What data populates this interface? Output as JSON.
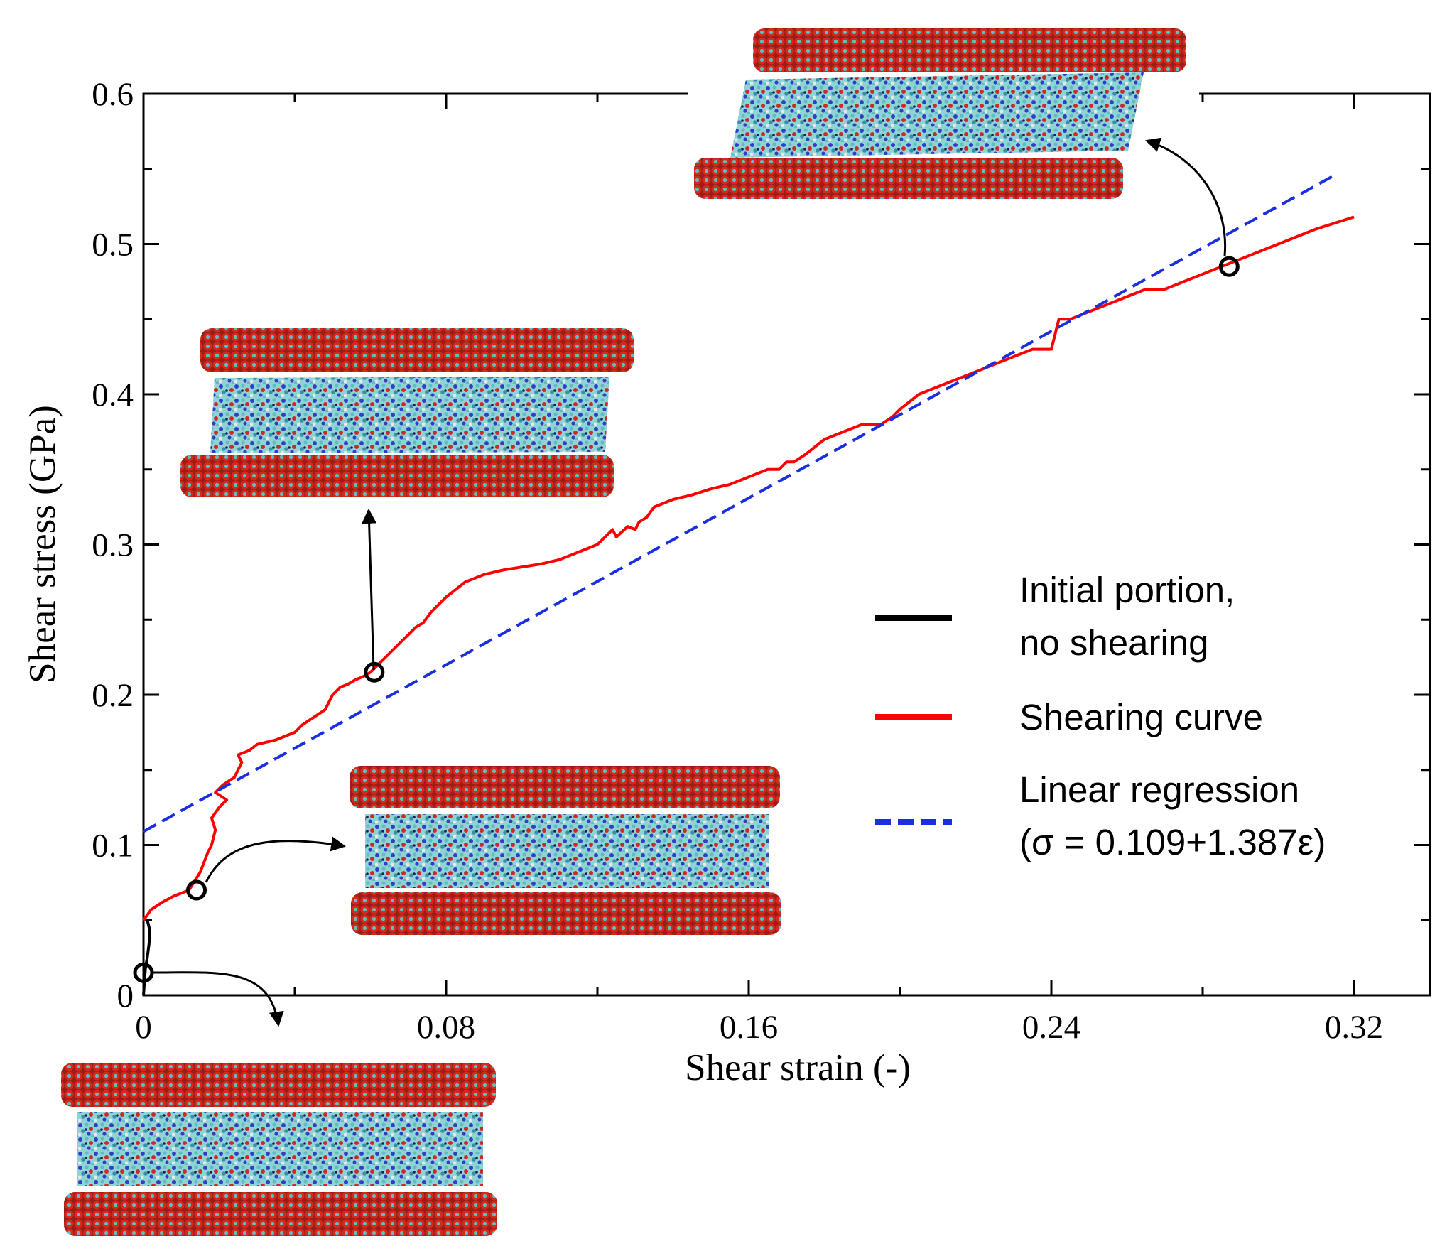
{
  "chart_data": {
    "type": "line",
    "title": "",
    "xlabel": "Shear strain (-)",
    "ylabel": "Shear stress (GPa)",
    "xlim": [
      0,
      0.34
    ],
    "ylim": [
      0,
      0.6
    ],
    "x_ticks": [
      0,
      0.08,
      0.16,
      0.24,
      0.32
    ],
    "x_tick_labels": [
      "0",
      "0.08",
      "0.16",
      "0.24",
      "0.32"
    ],
    "y_ticks": [
      0,
      0.1,
      0.2,
      0.3,
      0.4,
      0.5,
      0.6
    ],
    "y_tick_labels": [
      "0",
      "0.1",
      "0.2",
      "0.3",
      "0.4",
      "0.5",
      "0.6"
    ],
    "grid": false,
    "legend_position": "right",
    "series": [
      {
        "name": "Initial portion, no shearing",
        "legend_lines": [
          "Initial portion,",
          "no shearing"
        ],
        "color": "#000000",
        "style": "solid",
        "x": [
          0,
          0.0005,
          0.001,
          0.0015,
          0.0015,
          0.001
        ],
        "y": [
          0,
          0.018,
          0.025,
          0.035,
          0.045,
          0.05
        ]
      },
      {
        "name": "Shearing curve",
        "legend_lines": [
          "Shearing curve"
        ],
        "color": "#ff0000",
        "style": "solid",
        "x": [
          0,
          0.002,
          0.005,
          0.008,
          0.012,
          0.015,
          0.017,
          0.018,
          0.019,
          0.018,
          0.02,
          0.022,
          0.019,
          0.021,
          0.024,
          0.026,
          0.025,
          0.028,
          0.03,
          0.035,
          0.04,
          0.042,
          0.045,
          0.048,
          0.05,
          0.052,
          0.054,
          0.056,
          0.058,
          0.06,
          0.062,
          0.064,
          0.066,
          0.068,
          0.07,
          0.072,
          0.074,
          0.076,
          0.08,
          0.085,
          0.09,
          0.095,
          0.1,
          0.105,
          0.11,
          0.115,
          0.12,
          0.124,
          0.125,
          0.128,
          0.13,
          0.131,
          0.133,
          0.135,
          0.14,
          0.145,
          0.15,
          0.155,
          0.16,
          0.165,
          0.168,
          0.17,
          0.172,
          0.175,
          0.18,
          0.185,
          0.19,
          0.195,
          0.198,
          0.2,
          0.205,
          0.21,
          0.215,
          0.22,
          0.225,
          0.23,
          0.235,
          0.24,
          0.242,
          0.245,
          0.25,
          0.255,
          0.26,
          0.265,
          0.27,
          0.275,
          0.28,
          0.285,
          0.29,
          0.295,
          0.3,
          0.305,
          0.31,
          0.315,
          0.32
        ],
        "y": [
          0.05,
          0.057,
          0.062,
          0.066,
          0.07,
          0.082,
          0.095,
          0.1,
          0.11,
          0.118,
          0.125,
          0.13,
          0.135,
          0.14,
          0.145,
          0.155,
          0.16,
          0.163,
          0.167,
          0.17,
          0.175,
          0.18,
          0.185,
          0.19,
          0.2,
          0.205,
          0.207,
          0.21,
          0.212,
          0.215,
          0.22,
          0.225,
          0.23,
          0.235,
          0.24,
          0.245,
          0.248,
          0.255,
          0.265,
          0.275,
          0.28,
          0.283,
          0.285,
          0.287,
          0.29,
          0.295,
          0.3,
          0.31,
          0.305,
          0.312,
          0.31,
          0.315,
          0.318,
          0.325,
          0.33,
          0.333,
          0.337,
          0.34,
          0.345,
          0.35,
          0.35,
          0.355,
          0.355,
          0.36,
          0.37,
          0.375,
          0.38,
          0.38,
          0.385,
          0.39,
          0.4,
          0.405,
          0.41,
          0.415,
          0.42,
          0.425,
          0.43,
          0.43,
          0.45,
          0.45,
          0.455,
          0.46,
          0.465,
          0.47,
          0.47,
          0.475,
          0.48,
          0.485,
          0.49,
          0.495,
          0.5,
          0.505,
          0.51,
          0.514,
          0.518
        ]
      },
      {
        "name": "Linear regression",
        "legend_lines": [
          "Linear regression",
          "(σ = 0.109+1.387ε)"
        ],
        "color": "#1a2fe0",
        "style": "dashed",
        "x": [
          0,
          0.315
        ],
        "y": [
          0.109,
          0.546
        ]
      }
    ],
    "annotations": [
      {
        "name": "marker-origin",
        "x": 0,
        "y": 0.015
      },
      {
        "name": "marker-early",
        "x": 0.014,
        "y": 0.07
      },
      {
        "name": "marker-mid",
        "x": 0.061,
        "y": 0.215
      },
      {
        "name": "marker-late",
        "x": 0.287,
        "y": 0.485
      }
    ]
  },
  "insets": [
    {
      "name": "snapshot-initial",
      "caption": ""
    },
    {
      "name": "snapshot-early",
      "caption": ""
    },
    {
      "name": "snapshot-mid",
      "caption": ""
    },
    {
      "name": "snapshot-late",
      "caption": ""
    }
  ],
  "colors": {
    "axis": "#000000",
    "sheet_red": "#d42a1e",
    "sheet_teal": "#4fb6b8",
    "fluid_teal": "#6fc4c8",
    "fluid_blue": "#2f3fc8",
    "fluid_red": "#cc2a2a"
  }
}
